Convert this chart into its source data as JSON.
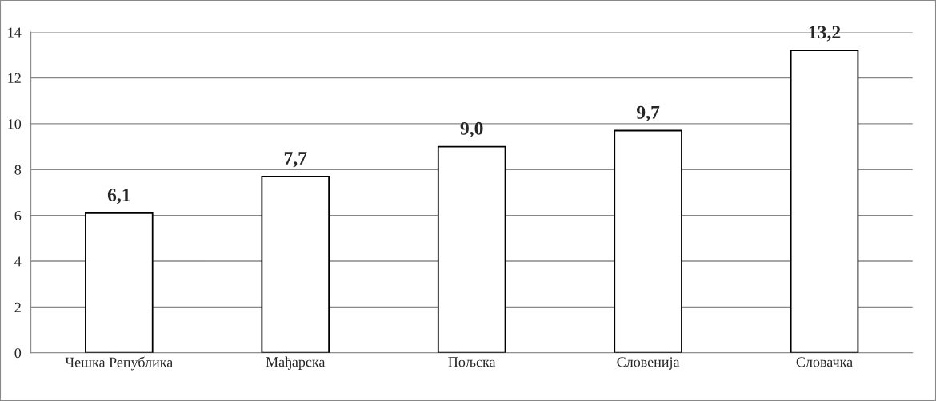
{
  "chart_data": {
    "type": "bar",
    "categories": [
      "Чешка Република",
      "Мађарска",
      "Пољска",
      "Словенија",
      "Словачка"
    ],
    "values": [
      6.1,
      7.7,
      9.0,
      9.7,
      13.2
    ],
    "value_labels": [
      "6,1",
      "7,7",
      "9,0",
      "9,7",
      "13,2"
    ],
    "color": "#ffffff",
    "ylim": [
      0,
      14
    ],
    "yticks": [
      0,
      2,
      4,
      6,
      8,
      10,
      12,
      14
    ],
    "grid": "y"
  }
}
